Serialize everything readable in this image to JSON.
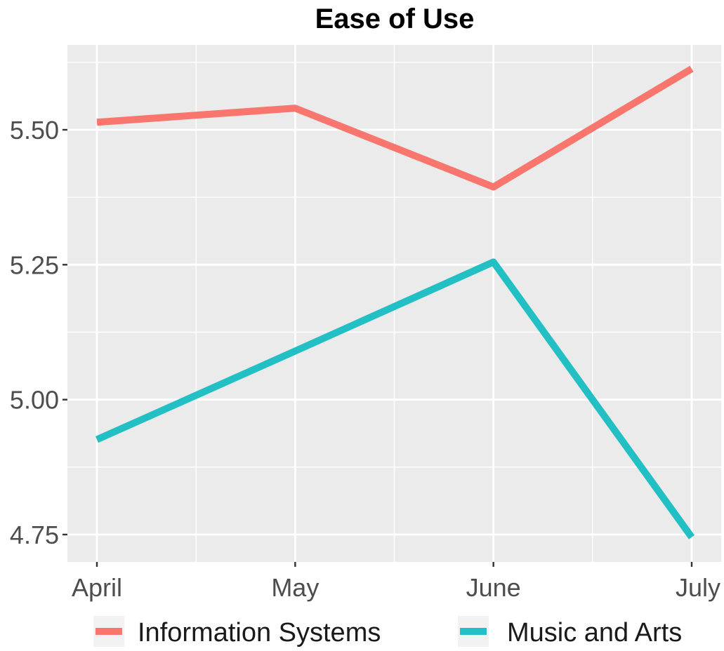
{
  "chart_data": {
    "type": "line",
    "title": "Ease of Use",
    "xlabel": "",
    "ylabel": "",
    "categories": [
      "April",
      "May",
      "June",
      "July"
    ],
    "series": [
      {
        "name": "Information Systems",
        "color": "#f8766d",
        "values": [
          5.514,
          5.54,
          5.394,
          5.613
        ]
      },
      {
        "name": "Music and Arts",
        "color": "#22bfc4",
        "values": [
          4.926,
          5.09,
          5.255,
          4.745
        ]
      }
    ],
    "ylim": [
      4.7,
      5.65
    ],
    "yticks": [
      4.75,
      5.0,
      5.25,
      5.5
    ],
    "ytick_labels": [
      "4.75",
      "5.00",
      "5.25",
      "5.50"
    ],
    "grid": true,
    "legend_position": "bottom",
    "panel_background": "#ebebeb",
    "gridline_color": "#ffffff"
  }
}
